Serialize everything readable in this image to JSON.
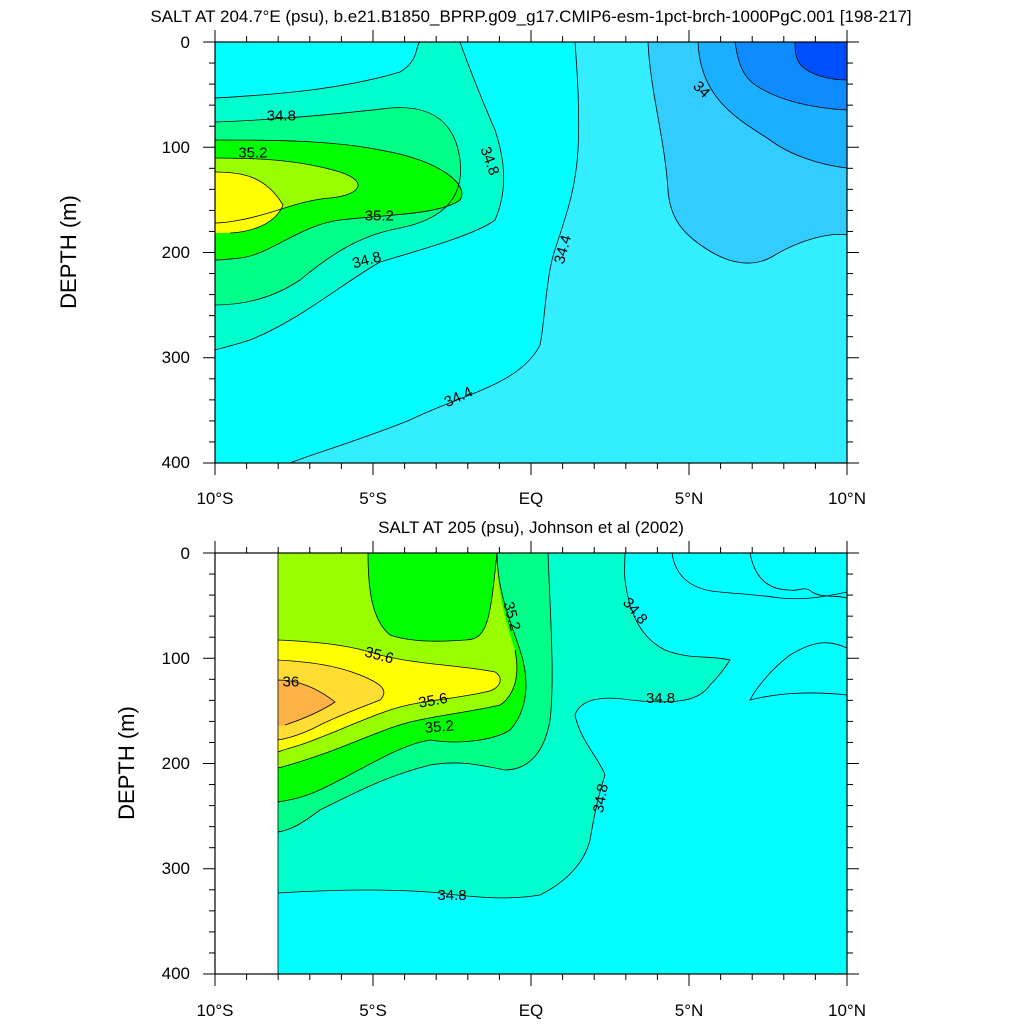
{
  "chart_data": [
    {
      "type": "contour",
      "title": "SALT AT 204.7°E (psu), b.e21.B1850_BPRP.g09_g17.CMIP6-esm-1pct-brch-1000PgC.001 [198-217]",
      "ylabel": "DEPTH (m)",
      "xlabel": "",
      "x_ticks": [
        "10°S",
        "5°S",
        "EQ",
        "5°N",
        "10°N"
      ],
      "x_range": [
        -10,
        10
      ],
      "y_ticks": [
        "0",
        "100",
        "200",
        "300",
        "400"
      ],
      "y_range": [
        0,
        400
      ],
      "y_reversed": true,
      "contour_levels": [
        33.6,
        33.8,
        34.0,
        34.2,
        34.4,
        34.6,
        34.8,
        35.0,
        35.2,
        35.4
      ],
      "contour_labels": [
        {
          "text": "34.8",
          "x": -7.9,
          "y": 70
        },
        {
          "text": "35.2",
          "x": -8.8,
          "y": 105
        },
        {
          "text": "34.8",
          "x": -1.3,
          "y": 113
        },
        {
          "text": "35.2",
          "x": -4.8,
          "y": 165
        },
        {
          "text": "34.8",
          "x": -5.2,
          "y": 207
        },
        {
          "text": "34.4",
          "x": 1.0,
          "y": 197
        },
        {
          "text": "34.4",
          "x": -2.3,
          "y": 337
        },
        {
          "text": "34",
          "x": 5.4,
          "y": 45
        }
      ]
    },
    {
      "type": "contour",
      "title": "SALT AT 205 (psu), Johnson et al (2002)",
      "ylabel": "DEPTH (m)",
      "xlabel": "",
      "x_ticks": [
        "10°S",
        "5°S",
        "EQ",
        "5°N",
        "10°N"
      ],
      "x_range": [
        -10,
        10
      ],
      "y_ticks": [
        "0",
        "100",
        "200",
        "300",
        "400"
      ],
      "y_range": [
        0,
        400
      ],
      "y_reversed": true,
      "data_x_range": [
        -8,
        10
      ],
      "contour_levels": [
        34.4,
        34.6,
        34.8,
        35.0,
        35.2,
        35.4,
        35.6,
        35.8,
        36.0,
        36.2
      ],
      "contour_labels": [
        {
          "text": "35.2",
          "x": -0.6,
          "y": 60
        },
        {
          "text": "34.8",
          "x": 3.3,
          "y": 55
        },
        {
          "text": "35.6",
          "x": -4.8,
          "y": 97
        },
        {
          "text": "36",
          "x": -7.6,
          "y": 122
        },
        {
          "text": "35.6",
          "x": -3.1,
          "y": 140
        },
        {
          "text": "35.2",
          "x": -2.9,
          "y": 165
        },
        {
          "text": "34.8",
          "x": 4.1,
          "y": 138
        },
        {
          "text": "34.8",
          "x": 2.2,
          "y": 233
        },
        {
          "text": "34.8",
          "x": -2.5,
          "y": 325
        }
      ]
    }
  ],
  "colors": {
    "s33_6": "#004fff",
    "s33_8": "#0d8bff",
    "s34_0": "#1aafff",
    "s34_2": "#33ccff",
    "s34_4": "#33eeff",
    "s34_6": "#00ffff",
    "s34_8": "#00ffcc",
    "s35_0": "#00ff88",
    "s35_2": "#00ff00",
    "s35_4": "#99ff00",
    "s35_6": "#ffff00",
    "s35_8": "#ffdd33",
    "s36_0": "#ffb347"
  }
}
